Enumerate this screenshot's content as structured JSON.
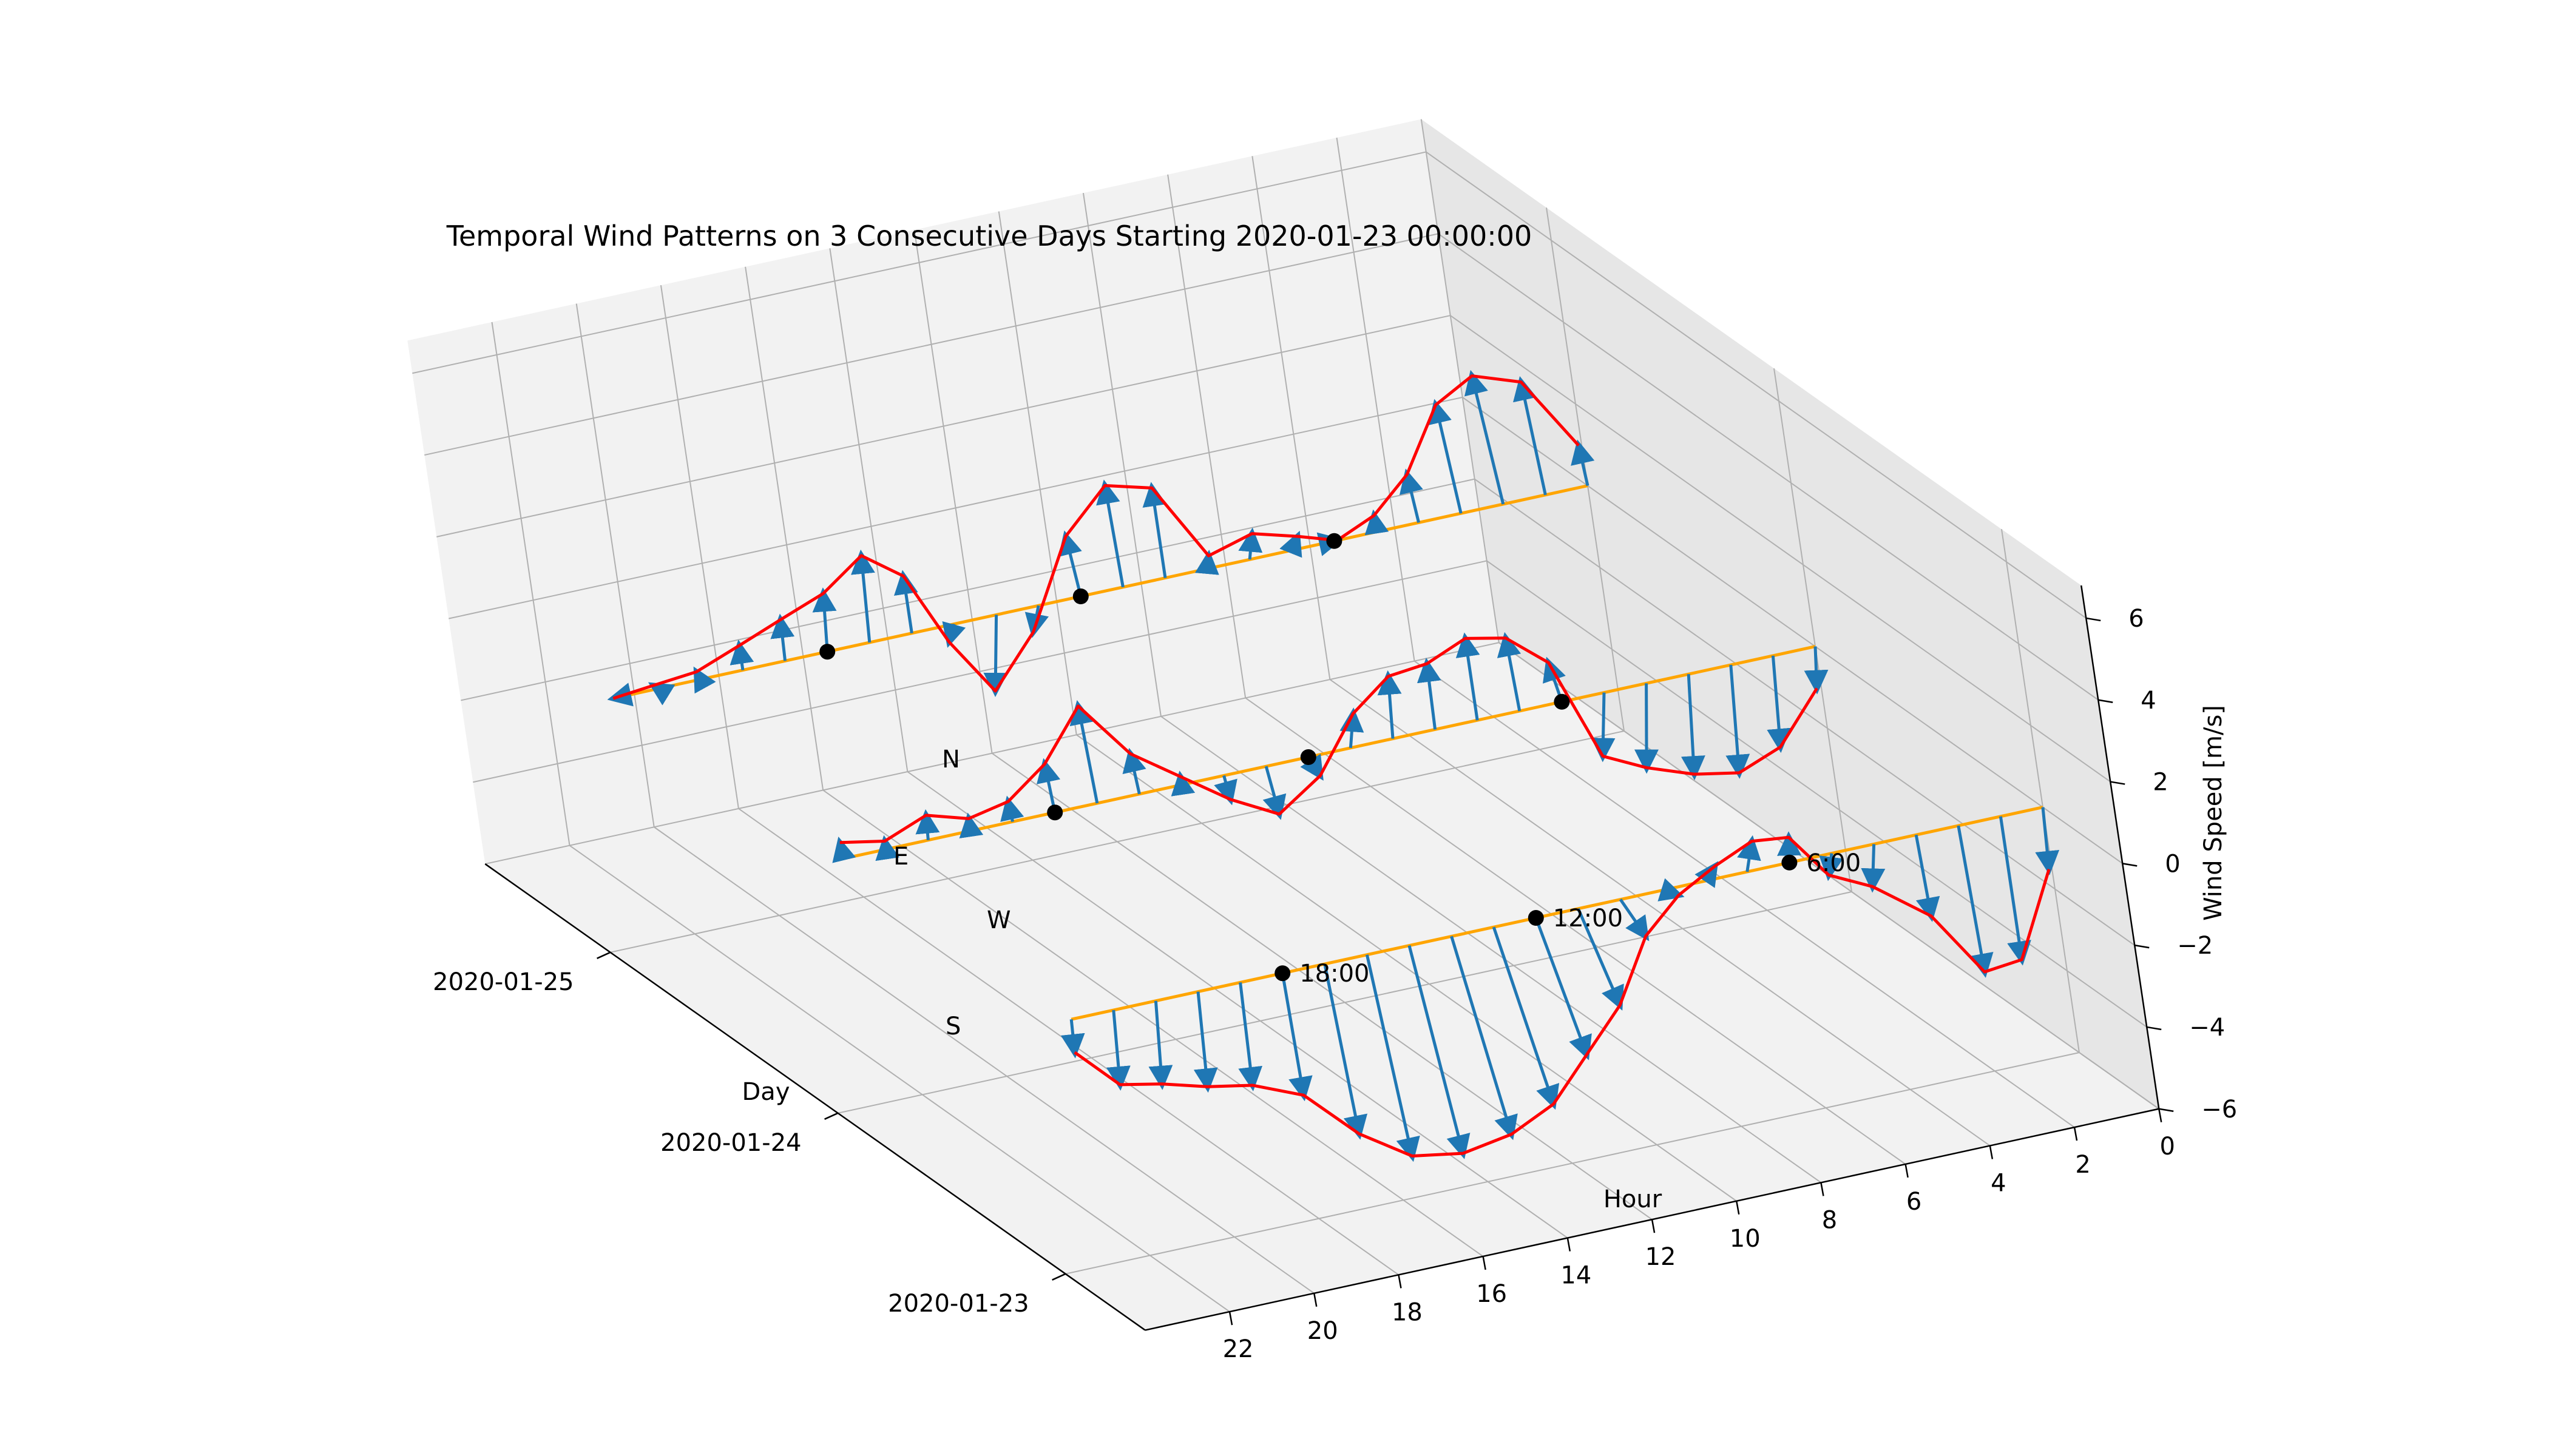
{
  "chart_data": {
    "type": "line",
    "subtype": "3d-quiver",
    "title": "Temporal Wind Patterns on 3 Consecutive Days Starting 2020-01-23 00:00:00",
    "xlabel": "Hour",
    "ylabel": "Day",
    "zlabel": "Wind Speed [m/s]",
    "x_ticks": [
      "0",
      "2",
      "4",
      "6",
      "8",
      "10",
      "12",
      "14",
      "16",
      "18",
      "20",
      "22"
    ],
    "y_ticks": [
      "2020-01-23",
      "2020-01-24",
      "2020-01-25"
    ],
    "z_ticks": [
      "−6",
      "−4",
      "−2",
      "0",
      "2",
      "4",
      "6"
    ],
    "xlim": [
      0,
      23
    ],
    "zlim": [
      -6,
      6
    ],
    "grid": true,
    "compass_labels": [
      "N",
      "E",
      "W",
      "S"
    ],
    "hour_labels": [
      "6:00",
      "12:00",
      "18:00"
    ],
    "hour_marker_hours": [
      6,
      12,
      18
    ],
    "colors": {
      "baseline": "#FFA500",
      "vectors": "#1F77B4",
      "envelope": "#FF0000",
      "markers": "#000000"
    },
    "series": [
      {
        "day": "2020-01-23",
        "hours": [
          0,
          1,
          2,
          3,
          4,
          5,
          6,
          7,
          8,
          9,
          10,
          11,
          12,
          13,
          14,
          15,
          16,
          17,
          18,
          19,
          20,
          21,
          22,
          23
        ],
        "u_east": [
          0.2,
          0.0,
          -0.3,
          -0.2,
          0.5,
          0.4,
          -0.2,
          -0.6,
          -0.8,
          -1.0,
          -1.3,
          -1.8,
          -2.0,
          -2.2,
          -2.0,
          -1.5,
          -1.0,
          -0.6,
          -0.2,
          0.2,
          0.3,
          0.4,
          0.3,
          0.1
        ],
        "v_north": [
          -1.5,
          -3.5,
          -3.6,
          -2.0,
          -1.0,
          -0.5,
          0.6,
          0.7,
          0.3,
          -0.2,
          -1.0,
          -2.5,
          -3.5,
          -4.5,
          -5.0,
          -5.2,
          -5.0,
          -4.2,
          -3.0,
          -2.5,
          -2.3,
          -2.0,
          -1.8,
          -0.8
        ]
      },
      {
        "day": "2020-01-24",
        "hours": [
          0,
          1,
          2,
          3,
          4,
          5,
          6,
          7,
          8,
          9,
          10,
          11,
          12,
          13,
          14,
          15,
          16,
          17,
          18,
          19,
          20,
          21,
          22,
          23
        ],
        "u_east": [
          0.3,
          0.4,
          0.5,
          0.6,
          0.8,
          0.7,
          0.5,
          0.2,
          0.0,
          -0.1,
          -0.3,
          -0.5,
          -0.6,
          -0.4,
          -0.2,
          0.0,
          0.2,
          0.3,
          0.2,
          0.1,
          0.0,
          -0.1,
          0.0,
          0.1
        ],
        "v_north": [
          -1.0,
          -2.2,
          -2.6,
          -2.4,
          -2.0,
          -1.5,
          1.0,
          1.8,
          2.0,
          1.6,
          1.5,
          0.8,
          -0.5,
          -1.2,
          -0.6,
          0.2,
          1.0,
          2.4,
          1.2,
          0.5,
          0.3,
          0.6,
          0.2,
          0.4
        ]
      },
      {
        "day": "2020-01-25",
        "hours": [
          0,
          1,
          2,
          3,
          4,
          5,
          6,
          7,
          8,
          9,
          10,
          11,
          12,
          13,
          14,
          15,
          16,
          17,
          18,
          19,
          20,
          21,
          22,
          23
        ],
        "u_east": [
          0.2,
          0.5,
          0.8,
          0.6,
          0.3,
          0.0,
          -0.2,
          -0.5,
          -0.4,
          -0.2,
          0.0,
          0.2,
          0.4,
          0.6,
          0.8,
          0.5,
          0.0,
          -0.3,
          -0.3,
          -0.1,
          0.0,
          0.2,
          0.3,
          0.2
        ],
        "v_north": [
          1.0,
          2.8,
          3.2,
          2.7,
          1.2,
          0.4,
          0.0,
          0.3,
          0.6,
          0.3,
          2.2,
          2.5,
          1.5,
          -0.6,
          -1.8,
          -0.4,
          1.4,
          2.1,
          1.4,
          1.0,
          0.6,
          0.2,
          0.1,
          0.0
        ]
      }
    ]
  }
}
